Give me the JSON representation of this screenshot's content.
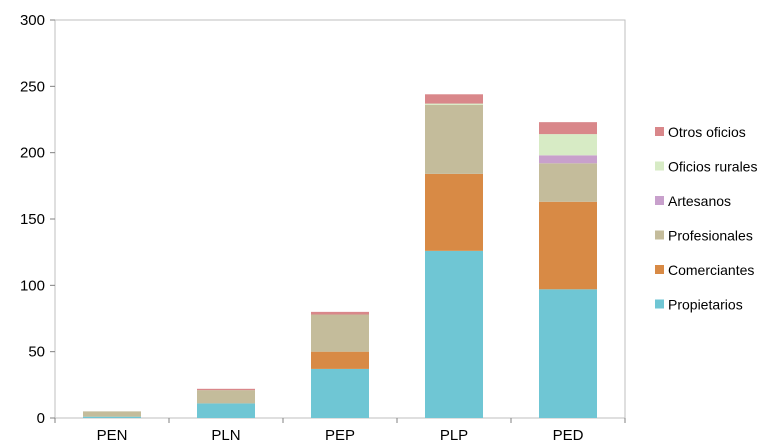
{
  "chart_data": {
    "type": "bar",
    "stacked": true,
    "categories": [
      "PEN",
      "PLN",
      "PEP",
      "PLP",
      "PED"
    ],
    "series": [
      {
        "name": "Propietarios",
        "color": "#6fc6d4",
        "values": [
          1,
          11,
          37,
          126,
          97
        ]
      },
      {
        "name": "Comerciantes",
        "color": "#d88a45",
        "values": [
          0,
          0,
          13,
          58,
          66
        ]
      },
      {
        "name": "Profesionales",
        "color": "#c4bc9b",
        "values": [
          4,
          10,
          28,
          52,
          29
        ]
      },
      {
        "name": "Artesanos",
        "color": "#c8a0cc",
        "values": [
          0,
          0,
          0,
          0,
          6
        ]
      },
      {
        "name": "Oficios rurales",
        "color": "#d7ebc5",
        "values": [
          0,
          0,
          0,
          1,
          16
        ]
      },
      {
        "name": "Otros oficios",
        "color": "#d9878a",
        "values": [
          0,
          1,
          2,
          7,
          9
        ]
      }
    ],
    "legend_order": [
      "Otros oficios",
      "Oficios rurales",
      "Artesanos",
      "Profesionales",
      "Comerciantes",
      "Propietarios"
    ],
    "y_ticks": [
      0,
      50,
      100,
      150,
      200,
      250,
      300
    ],
    "ylim": [
      0,
      300
    ],
    "legend_position": "right",
    "grid": false,
    "title": "",
    "xlabel": "",
    "ylabel": ""
  }
}
